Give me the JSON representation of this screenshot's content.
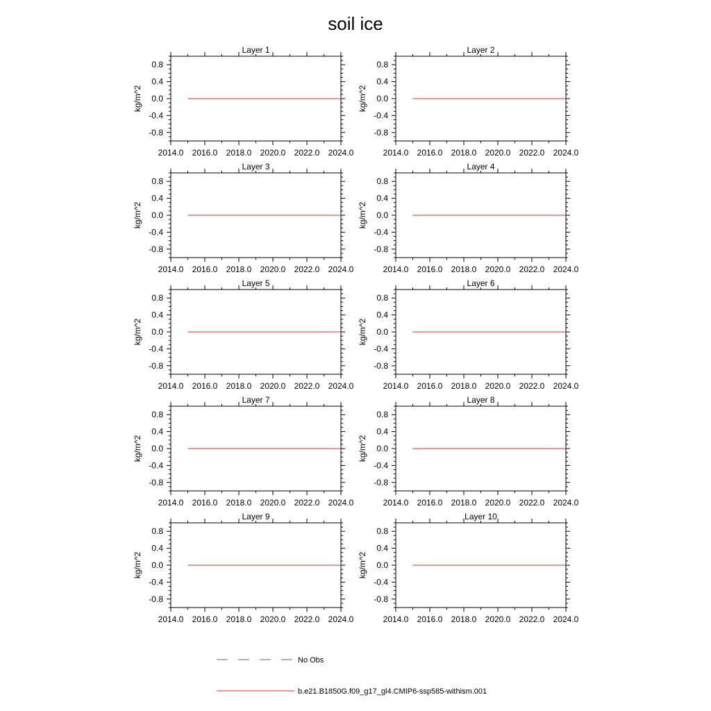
{
  "figure": {
    "title": "soil ice",
    "legend": [
      {
        "label": "No Obs",
        "style": "dashed",
        "color": "#5a5ac8"
      },
      {
        "label": "b.e21.B1850G.f09_g17_gl4.CMIP6-ssp585-withism.001",
        "style": "solid",
        "color": "#e03030"
      }
    ]
  },
  "chart_data": [
    {
      "type": "line",
      "title": "Layer 1",
      "ylabel": "kg/m^2",
      "xlim": [
        2014,
        2024
      ],
      "ylim": [
        -1,
        1
      ],
      "xticks": [
        "2014.0",
        "2016.0",
        "2018.0",
        "2020.0",
        "2022.0",
        "2024.0"
      ],
      "yticks": [
        "0.8",
        "0.4",
        "0.0",
        "-0.4",
        "-0.8"
      ],
      "series": [
        {
          "color": "#e03030",
          "x": [
            2015,
            2024
          ],
          "y": [
            0,
            0
          ]
        }
      ]
    },
    {
      "type": "line",
      "title": "Layer 2",
      "ylabel": "kg/m^2",
      "xlim": [
        2014,
        2024
      ],
      "ylim": [
        -1,
        1
      ],
      "xticks": [
        "2014.0",
        "2016.0",
        "2018.0",
        "2020.0",
        "2022.0",
        "2024.0"
      ],
      "yticks": [
        "0.8",
        "0.4",
        "0.0",
        "-0.4",
        "-0.8"
      ],
      "series": [
        {
          "color": "#e03030",
          "x": [
            2015,
            2024
          ],
          "y": [
            0,
            0
          ]
        }
      ]
    },
    {
      "type": "line",
      "title": "Layer 3",
      "ylabel": "kg/m^2",
      "xlim": [
        2014,
        2024
      ],
      "ylim": [
        -1,
        1
      ],
      "xticks": [
        "2014.0",
        "2016.0",
        "2018.0",
        "2020.0",
        "2022.0",
        "2024.0"
      ],
      "yticks": [
        "0.8",
        "0.4",
        "0.0",
        "-0.4",
        "-0.8"
      ],
      "series": [
        {
          "color": "#e03030",
          "x": [
            2015,
            2024
          ],
          "y": [
            0,
            0
          ]
        }
      ]
    },
    {
      "type": "line",
      "title": "Layer 4",
      "ylabel": "kg/m^2",
      "xlim": [
        2014,
        2024
      ],
      "ylim": [
        -1,
        1
      ],
      "xticks": [
        "2014.0",
        "2016.0",
        "2018.0",
        "2020.0",
        "2022.0",
        "2024.0"
      ],
      "yticks": [
        "0.8",
        "0.4",
        "0.0",
        "-0.4",
        "-0.8"
      ],
      "series": [
        {
          "color": "#e03030",
          "x": [
            2015,
            2024
          ],
          "y": [
            0,
            0
          ]
        }
      ]
    },
    {
      "type": "line",
      "title": "Layer 5",
      "ylabel": "kg/m^2",
      "xlim": [
        2014,
        2024
      ],
      "ylim": [
        -1,
        1
      ],
      "xticks": [
        "2014.0",
        "2016.0",
        "2018.0",
        "2020.0",
        "2022.0",
        "2024.0"
      ],
      "yticks": [
        "0.8",
        "0.4",
        "0.0",
        "-0.4",
        "-0.8"
      ],
      "series": [
        {
          "color": "#e03030",
          "x": [
            2015,
            2024
          ],
          "y": [
            0,
            0
          ]
        }
      ]
    },
    {
      "type": "line",
      "title": "Layer 6",
      "ylabel": "kg/m^2",
      "xlim": [
        2014,
        2024
      ],
      "ylim": [
        -1,
        1
      ],
      "xticks": [
        "2014.0",
        "2016.0",
        "2018.0",
        "2020.0",
        "2022.0",
        "2024.0"
      ],
      "yticks": [
        "0.8",
        "0.4",
        "0.0",
        "-0.4",
        "-0.8"
      ],
      "series": [
        {
          "color": "#e03030",
          "x": [
            2015,
            2024
          ],
          "y": [
            0,
            0
          ]
        }
      ]
    },
    {
      "type": "line",
      "title": "Layer 7",
      "ylabel": "kg/m^2",
      "xlim": [
        2014,
        2024
      ],
      "ylim": [
        -1,
        1
      ],
      "xticks": [
        "2014.0",
        "2016.0",
        "2018.0",
        "2020.0",
        "2022.0",
        "2024.0"
      ],
      "yticks": [
        "0.8",
        "0.4",
        "0.0",
        "-0.4",
        "-0.8"
      ],
      "series": [
        {
          "color": "#e03030",
          "x": [
            2015,
            2024
          ],
          "y": [
            0,
            0
          ]
        }
      ]
    },
    {
      "type": "line",
      "title": "Layer 8",
      "ylabel": "kg/m^2",
      "xlim": [
        2014,
        2024
      ],
      "ylim": [
        -1,
        1
      ],
      "xticks": [
        "2014.0",
        "2016.0",
        "2018.0",
        "2020.0",
        "2022.0",
        "2024.0"
      ],
      "yticks": [
        "0.8",
        "0.4",
        "0.0",
        "-0.4",
        "-0.8"
      ],
      "series": [
        {
          "color": "#e03030",
          "x": [
            2015,
            2024
          ],
          "y": [
            0,
            0
          ]
        }
      ]
    },
    {
      "type": "line",
      "title": "Layer 9",
      "ylabel": "kg/m^2",
      "xlim": [
        2014,
        2024
      ],
      "ylim": [
        -1,
        1
      ],
      "xticks": [
        "2014.0",
        "2016.0",
        "2018.0",
        "2020.0",
        "2022.0",
        "2024.0"
      ],
      "yticks": [
        "0.8",
        "0.4",
        "0.0",
        "-0.4",
        "-0.8"
      ],
      "series": [
        {
          "color": "#e03030",
          "x": [
            2015,
            2024
          ],
          "y": [
            0,
            0
          ]
        }
      ]
    },
    {
      "type": "line",
      "title": "Layer 10",
      "ylabel": "kg/m^2",
      "xlim": [
        2014,
        2024
      ],
      "ylim": [
        -1,
        1
      ],
      "xticks": [
        "2014.0",
        "2016.0",
        "2018.0",
        "2020.0",
        "2022.0",
        "2024.0"
      ],
      "yticks": [
        "0.8",
        "0.4",
        "0.0",
        "-0.4",
        "-0.8"
      ],
      "series": [
        {
          "color": "#e03030",
          "x": [
            2015,
            2024
          ],
          "y": [
            0,
            0
          ]
        }
      ]
    }
  ]
}
